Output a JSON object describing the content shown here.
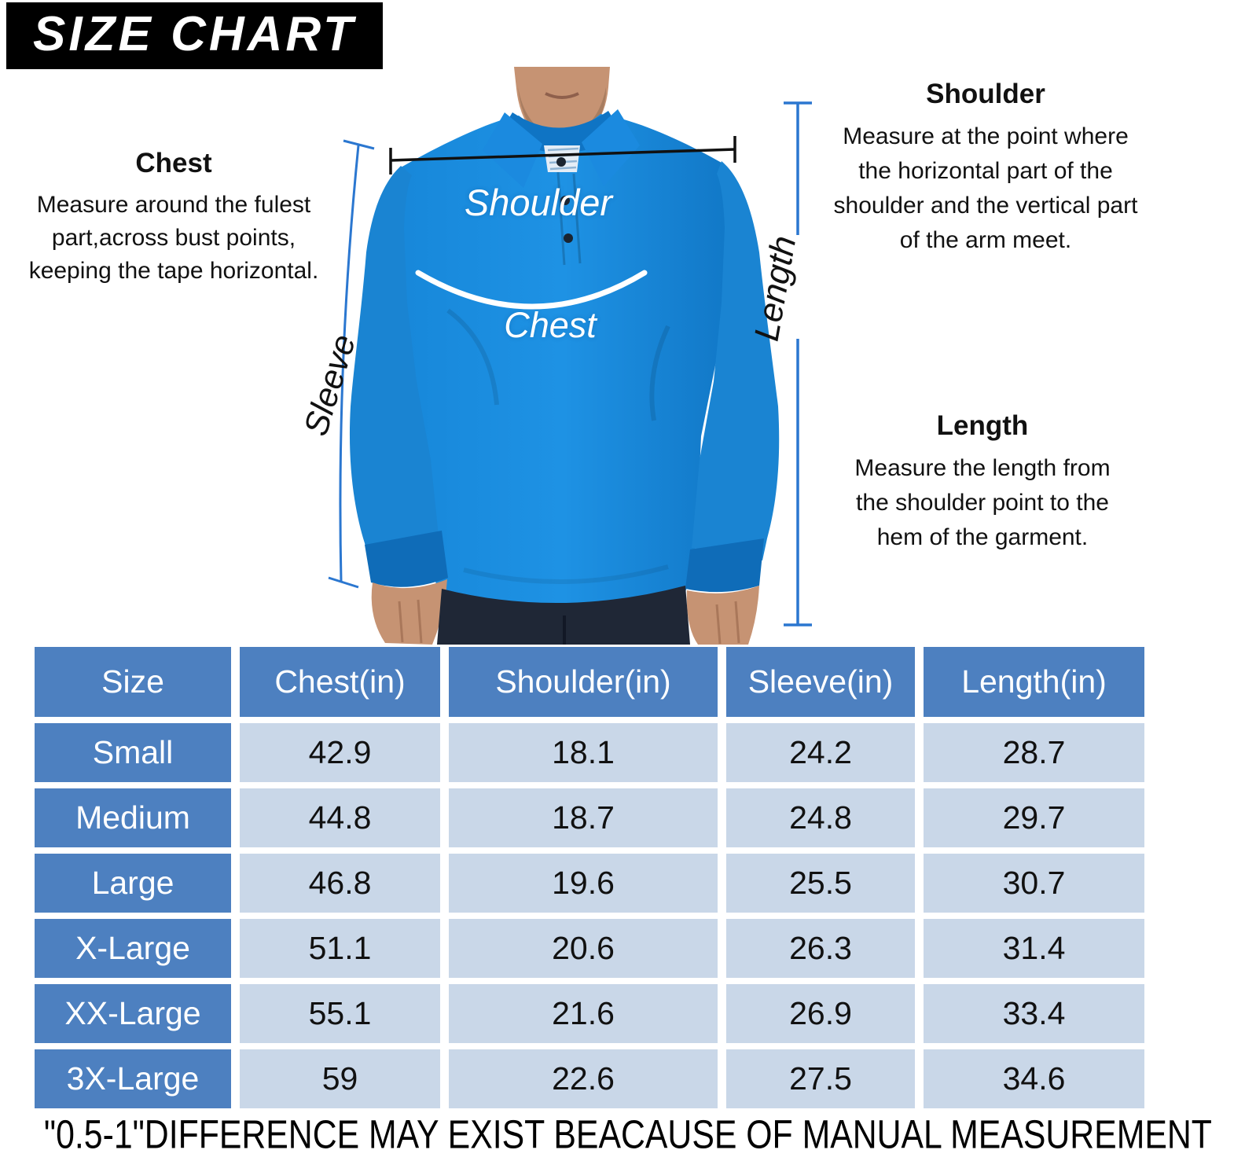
{
  "title": "SIZE CHART",
  "figure": {
    "labels": {
      "shoulder": "Shoulder",
      "chest": "Chest",
      "sleeve": "Sleeve",
      "length": "Length"
    }
  },
  "annotations": {
    "chest": {
      "heading": "Chest",
      "body": "Measure around the fulest\npart,across bust points,\nkeeping the tape horizontal."
    },
    "shoulder": {
      "heading": "Shoulder",
      "body": "Measure at the point where\nthe horizontal part of the\nshoulder and the vertical part\nof the arm meet."
    },
    "length": {
      "heading": "Length",
      "body": "Measure the length from\nthe shoulder point to the\nhem of the garment."
    }
  },
  "table": {
    "columns": [
      "Size",
      "Chest(in)",
      "Shoulder(in)",
      "Sleeve(in)",
      "Length(in)"
    ],
    "rows": [
      {
        "size": "Small",
        "values": [
          "42.9",
          "18.1",
          "24.2",
          "28.7"
        ]
      },
      {
        "size": "Medium",
        "values": [
          "44.8",
          "18.7",
          "24.8",
          "29.7"
        ]
      },
      {
        "size": "Large",
        "values": [
          "46.8",
          "19.6",
          "25.5",
          "30.7"
        ]
      },
      {
        "size": "X-Large",
        "values": [
          "51.1",
          "20.6",
          "26.3",
          "31.4"
        ]
      },
      {
        "size": "XX-Large",
        "values": [
          "55.1",
          "21.6",
          "26.9",
          "33.4"
        ]
      },
      {
        "size": "3X-Large",
        "values": [
          "59",
          "22.6",
          "27.5",
          "34.6"
        ]
      }
    ]
  },
  "footnote": "\"0.5-1\"DIFFERENCE MAY EXIST BEACAUSE OF MANUAL MEASUREMENT",
  "colors": {
    "title_bg": "#000000",
    "title_text": "#ffffff",
    "header_cell_blue": "#4d80c0",
    "data_cell_blue": "#c9d7e8",
    "shirt_blue": "#1787d9",
    "pants_navy": "#1f2736",
    "measure_line_blue": "#2b77d0",
    "shoulder_line_black": "#111111",
    "chest_line_white": "#ffffff"
  }
}
